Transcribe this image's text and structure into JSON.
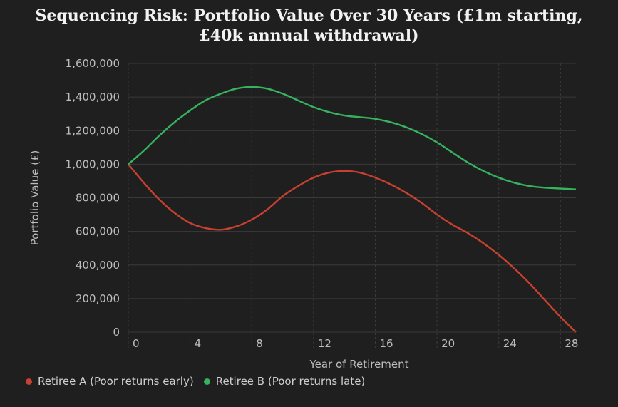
{
  "colors": {
    "series_a": "#c8402f",
    "series_b": "#36b35f",
    "grid": "#3a3a3a"
  },
  "chart_data": {
    "type": "line",
    "title": "Sequencing Risk: Portfolio Value Over 30 Years (£1m starting, £40k annual withdrawal)",
    "xlabel": "Year of Retirement",
    "ylabel": "Portfolio Value (£)",
    "xlim": [
      0,
      29
    ],
    "ylim": [
      0,
      1600000
    ],
    "x_ticks": [
      0,
      4,
      8,
      12,
      16,
      20,
      24,
      28
    ],
    "x_tick_labels": [
      "0",
      "4",
      "8",
      "12",
      "16",
      "20",
      "24",
      "28"
    ],
    "y_ticks": [
      0,
      200000,
      400000,
      600000,
      800000,
      1000000,
      1200000,
      1400000,
      1600000
    ],
    "y_tick_labels": [
      "0",
      "200,000",
      "400,000",
      "600,000",
      "800,000",
      "1,000,000",
      "1,200,000",
      "1,400,000",
      "1,600,000"
    ],
    "grid": true,
    "legend_position": "bottom-left",
    "x": [
      0,
      1,
      2,
      3,
      4,
      5,
      6,
      7,
      8,
      9,
      10,
      11,
      12,
      13,
      14,
      15,
      16,
      17,
      18,
      19,
      20,
      21,
      22,
      23,
      24,
      25,
      26,
      27,
      28,
      29
    ],
    "series": [
      {
        "name": "Retiree A (Poor returns early)",
        "values": [
          1000000,
          890000,
          790000,
          710000,
          650000,
          620000,
          610000,
          630000,
          670000,
          730000,
          810000,
          870000,
          920000,
          950000,
          960000,
          950000,
          920000,
          880000,
          830000,
          770000,
          700000,
          640000,
          590000,
          530000,
          460000,
          380000,
          290000,
          190000,
          90000,
          0
        ]
      },
      {
        "name": "Retiree B (Poor returns late)",
        "values": [
          1000000,
          1080000,
          1170000,
          1250000,
          1320000,
          1380000,
          1420000,
          1450000,
          1460000,
          1450000,
          1420000,
          1380000,
          1340000,
          1310000,
          1290000,
          1280000,
          1270000,
          1250000,
          1220000,
          1180000,
          1130000,
          1070000,
          1010000,
          960000,
          920000,
          890000,
          870000,
          860000,
          855000,
          850000
        ]
      }
    ]
  }
}
